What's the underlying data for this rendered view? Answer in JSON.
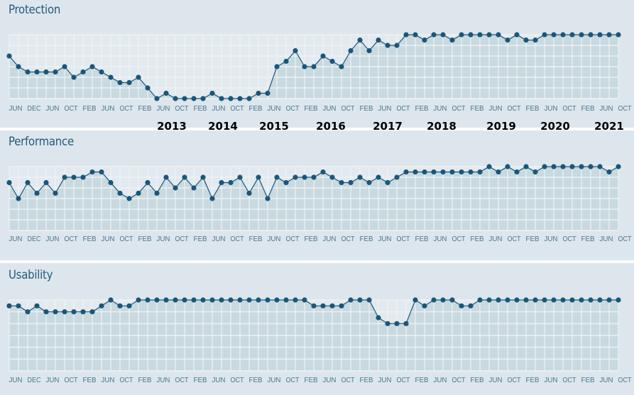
{
  "colors": {
    "background": "#dde6ec",
    "fill": "#c9d9e0",
    "line": "#1b5679",
    "grid": "#f0f4f6",
    "title": "#245a7e"
  },
  "chart_data": [
    {
      "type": "line",
      "title": "Protection",
      "ylim": [
        0,
        6
      ],
      "grid": true,
      "x_tick_labels": [
        "JUN",
        "DEC",
        "JUN",
        "OCT",
        "FEB",
        "JUN",
        "OCT",
        "FEB",
        "JUN",
        "OCT",
        "FEB",
        "JUN",
        "OCT",
        "FEB",
        "JUN",
        "OCT",
        "FEB",
        "JUN",
        "OCT",
        "FEB",
        "JUN",
        "OCT",
        "FEB",
        "JUN",
        "OCT",
        "FEB",
        "JUN",
        "OCT",
        "FEB",
        "JUN",
        "OCT",
        "FEB",
        "JUN",
        "OCT"
      ],
      "year_labels": [
        "2013",
        "2014",
        "2015",
        "2016",
        "2017",
        "2018",
        "2019",
        "2020",
        "2021"
      ],
      "values": [
        4,
        3,
        2.5,
        2.5,
        2.5,
        2.5,
        3,
        2,
        2.5,
        3,
        2.5,
        2,
        1.5,
        1.5,
        2,
        1,
        0,
        0.5,
        0,
        0,
        0,
        0,
        0.5,
        0,
        0,
        0,
        0,
        0.5,
        0.5,
        3,
        3.5,
        4.5,
        3,
        3,
        4,
        3.5,
        3,
        4.5,
        5.5,
        4.5,
        5.5,
        5,
        5,
        6,
        6,
        5.5,
        6,
        6,
        5.5,
        6,
        6,
        6,
        6,
        6,
        5.5,
        6,
        5.5,
        5.5,
        6,
        6,
        6,
        6,
        6,
        6,
        6,
        6,
        6
      ]
    },
    {
      "type": "line",
      "title": "Performance",
      "ylim": [
        0,
        6
      ],
      "grid": true,
      "x_tick_labels": [
        "JUN",
        "DEC",
        "JUN",
        "OCT",
        "FEB",
        "JUN",
        "OCT",
        "FEB",
        "JUN",
        "OCT",
        "FEB",
        "JUN",
        "OCT",
        "FEB",
        "JUN",
        "OCT",
        "FEB",
        "JUN",
        "OCT",
        "FEB",
        "JUN",
        "OCT",
        "FEB",
        "JUN",
        "OCT",
        "FEB",
        "JUN",
        "OCT",
        "FEB",
        "JUN",
        "OCT",
        "FEB",
        "JUN",
        "OCT"
      ],
      "values": [
        4.5,
        3,
        4.5,
        3.5,
        4.5,
        3.5,
        5,
        5,
        5,
        5.5,
        5.5,
        4.5,
        3.5,
        3,
        3.5,
        4.5,
        3.5,
        5,
        4,
        5,
        4,
        5,
        3,
        4.5,
        4.5,
        5,
        3.5,
        5,
        3,
        5,
        4.5,
        5,
        5,
        5,
        5.5,
        5,
        4.5,
        4.5,
        5,
        4.5,
        5,
        4.5,
        5,
        5.5,
        5.5,
        5.5,
        5.5,
        5.5,
        5.5,
        5.5,
        5.5,
        5.5,
        6,
        5.5,
        6,
        5.5,
        6,
        5.5,
        6,
        6,
        6,
        6,
        6,
        6,
        6,
        5.5,
        6
      ]
    },
    {
      "type": "line",
      "title": "Usability",
      "ylim": [
        0,
        6
      ],
      "grid": true,
      "x_tick_labels": [
        "JUN",
        "DEC",
        "JUN",
        "OCT",
        "FEB",
        "JUN",
        "OCT",
        "FEB",
        "JUN",
        "OCT",
        "FEB",
        "JUN",
        "OCT",
        "FEB",
        "JUN",
        "OCT",
        "FEB",
        "JUN",
        "OCT",
        "FEB",
        "JUN",
        "OCT",
        "FEB",
        "JUN",
        "OCT",
        "FEB",
        "JUN",
        "OCT",
        "FEB",
        "JUN",
        "OCT",
        "FEB",
        "JUN",
        "OCT"
      ],
      "values": [
        5.5,
        5.5,
        5,
        5.5,
        5,
        5,
        5,
        5,
        5,
        5,
        5.5,
        6,
        5.5,
        5.5,
        6,
        6,
        6,
        6,
        6,
        6,
        6,
        6,
        6,
        6,
        6,
        6,
        6,
        6,
        6,
        6,
        6,
        6,
        6,
        5.5,
        5.5,
        5.5,
        5.5,
        6,
        6,
        6,
        4.5,
        4,
        4,
        4,
        6,
        5.5,
        6,
        6,
        6,
        5.5,
        5.5,
        6,
        6,
        6,
        6,
        6,
        6,
        6,
        6,
        6,
        6,
        6,
        6,
        6,
        6,
        6,
        6
      ]
    }
  ]
}
